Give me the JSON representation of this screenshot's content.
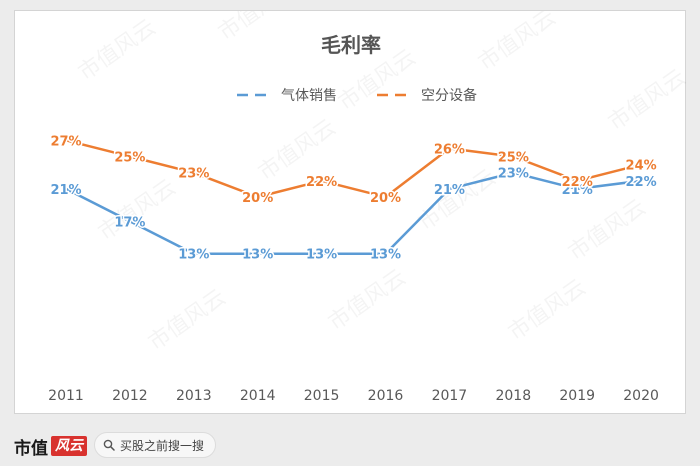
{
  "chart_data": {
    "type": "line",
    "title": "毛利率",
    "categories": [
      "2011",
      "2012",
      "2013",
      "2014",
      "2015",
      "2016",
      "2017",
      "2018",
      "2019",
      "2020"
    ],
    "series": [
      {
        "name": "气体销售",
        "values": [
          21,
          17,
          13,
          13,
          13,
          13,
          21,
          23,
          21,
          22
        ],
        "labels": [
          "21%",
          "17%",
          "13%",
          "13%",
          "13%",
          "13%",
          "21%",
          "23%",
          "21%",
          "22%"
        ],
        "color": "#5b9bd5"
      },
      {
        "name": "空分设备",
        "values": [
          27,
          25,
          23,
          20,
          22,
          20,
          26,
          25,
          22,
          24
        ],
        "labels": [
          "27%",
          "25%",
          "23%",
          "20%",
          "22%",
          "20%",
          "26%",
          "25%",
          "22%",
          "24%"
        ],
        "color": "#ed7d31"
      }
    ],
    "ylim": [
      0,
      30
    ],
    "grid": false,
    "legend": "top"
  },
  "watermark": "市值风云",
  "footer": {
    "brand_text": "市值",
    "brand_script": "风云",
    "search_placeholder": "买股之前搜一搜"
  }
}
